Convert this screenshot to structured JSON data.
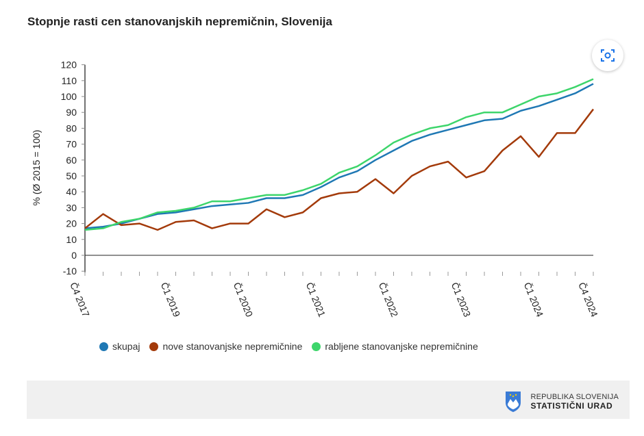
{
  "title": "Stopnje rasti cen stanovanjskih nepremičnin, Slovenija",
  "footer": {
    "org_line1": "REPUBLIKA SLOVENIJA",
    "org_line2": "STATISTIČNI URAD"
  },
  "chart_data": {
    "type": "line",
    "ylabel": "% (Ø 2015 = 100)",
    "ylim": [
      -10,
      120
    ],
    "yticks": [
      -10,
      0,
      10,
      20,
      30,
      40,
      50,
      60,
      70,
      80,
      90,
      100,
      110,
      120
    ],
    "x": [
      "Č4 2017",
      "Č1 2018",
      "Č2 2018",
      "Č3 2018",
      "Č4 2018",
      "Č1 2019",
      "Č2 2019",
      "Č3 2019",
      "Č4 2019",
      "Č1 2020",
      "Č2 2020",
      "Č3 2020",
      "Č4 2020",
      "Č1 2021",
      "Č2 2021",
      "Č3 2021",
      "Č4 2021",
      "Č1 2022",
      "Č2 2022",
      "Č3 2022",
      "Č4 2022",
      "Č1 2023",
      "Č2 2023",
      "Č3 2023",
      "Č4 2023",
      "Č1 2024",
      "Č2 2024",
      "Č3 2024",
      "Č4 2024"
    ],
    "xtick_labels": [
      "Č4 2017",
      "Č1 2019",
      "Č1 2020",
      "Č1 2021",
      "Č1 2022",
      "Č1 2023",
      "Č1 2024",
      "Č4 2024"
    ],
    "legend": "bottom",
    "series": [
      {
        "name": "skupaj",
        "color": "#1f78b4",
        "values": [
          17,
          18,
          20,
          23,
          26,
          27,
          29,
          31,
          32,
          33,
          36,
          36,
          38,
          43,
          49,
          53,
          60,
          66,
          72,
          76,
          79,
          82,
          85,
          86,
          91,
          94,
          98,
          102,
          108
        ]
      },
      {
        "name": "nove stanovanjske nepremičnine",
        "color": "#a33a0a",
        "values": [
          17,
          26,
          19,
          20,
          16,
          21,
          22,
          17,
          20,
          20,
          29,
          24,
          27,
          36,
          39,
          40,
          48,
          39,
          50,
          56,
          59,
          49,
          53,
          66,
          75,
          62,
          77,
          77,
          92
        ]
      },
      {
        "name": "rabljene stanovanjske nepremičnine",
        "color": "#3dd56b",
        "values": [
          16,
          17,
          21,
          23,
          27,
          28,
          30,
          34,
          34,
          36,
          38,
          38,
          41,
          45,
          52,
          56,
          63,
          71,
          76,
          80,
          82,
          87,
          90,
          90,
          95,
          100,
          102,
          106,
          111
        ]
      }
    ]
  }
}
